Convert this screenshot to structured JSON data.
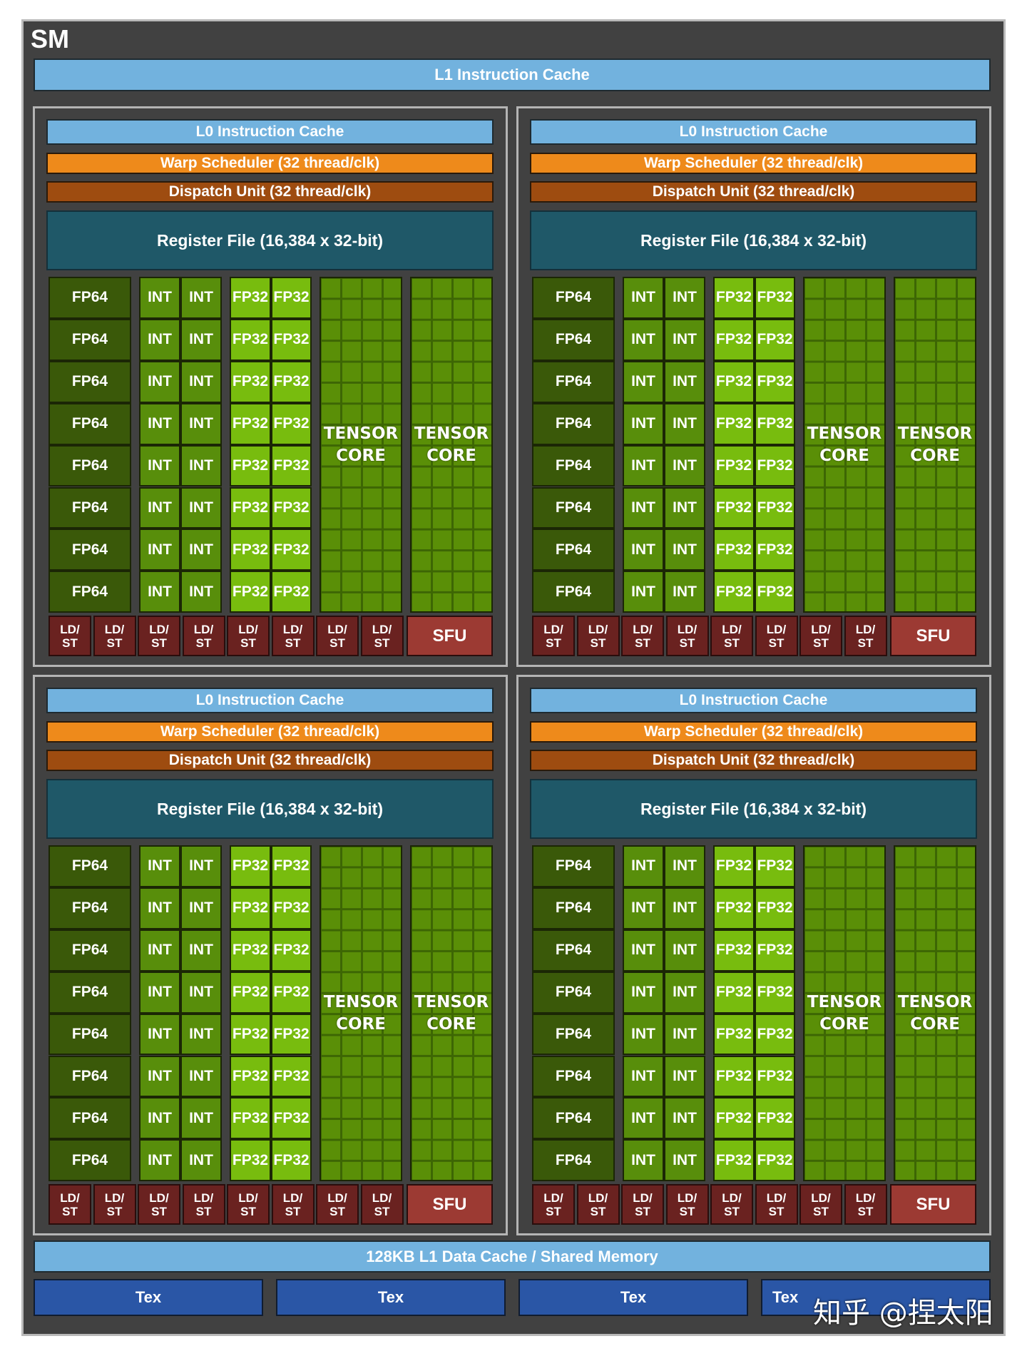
{
  "sm_title": "SM",
  "l1_instruction_cache": "L1 Instruction Cache",
  "quadrants": [
    {
      "l0": "L0 Instruction Cache",
      "warp": "Warp Scheduler (32 thread/clk)",
      "dispatch": "Dispatch Unit (32 thread/clk)",
      "register": "Register File (16,384 x 32-bit)",
      "fp64": "FP64",
      "int": "INT",
      "fp32": "FP32",
      "tensor_line1": "TENSOR",
      "tensor_line2": "CORE",
      "ld": "LD/",
      "st": "ST",
      "sfu": "SFU"
    },
    {
      "l0": "L0 Instruction Cache",
      "warp": "Warp Scheduler (32 thread/clk)",
      "dispatch": "Dispatch Unit (32 thread/clk)",
      "register": "Register File (16,384 x 32-bit)",
      "fp64": "FP64",
      "int": "INT",
      "fp32": "FP32",
      "tensor_line1": "TENSOR",
      "tensor_line2": "CORE",
      "ld": "LD/",
      "st": "ST",
      "sfu": "SFU"
    },
    {
      "l0": "L0 Instruction Cache",
      "warp": "Warp Scheduler (32 thread/clk)",
      "dispatch": "Dispatch Unit (32 thread/clk)",
      "register": "Register File (16,384 x 32-bit)",
      "fp64": "FP64",
      "int": "INT",
      "fp32": "FP32",
      "tensor_line1": "TENSOR",
      "tensor_line2": "CORE",
      "ld": "LD/",
      "st": "ST",
      "sfu": "SFU"
    },
    {
      "l0": "L0 Instruction Cache",
      "warp": "Warp Scheduler (32 thread/clk)",
      "dispatch": "Dispatch Unit (32 thread/clk)",
      "register": "Register File (16,384 x 32-bit)",
      "fp64": "FP64",
      "int": "INT",
      "fp32": "FP32",
      "tensor_line1": "TENSOR",
      "tensor_line2": "CORE",
      "ld": "LD/",
      "st": "ST",
      "sfu": "SFU"
    }
  ],
  "l1_data_cache": "128KB L1 Data Cache / Shared Memory",
  "tex_units": [
    "Tex",
    "Tex",
    "Tex",
    "Tex"
  ],
  "watermark": "知乎 @捏太阳",
  "colors": {
    "l1_cache": "#72b2de",
    "warp_scheduler": "#ee8a1b",
    "dispatch_unit": "#9e4c10",
    "register_file": "#1f5868",
    "fp64": "#3a5909",
    "int": "#588e0b",
    "fp32": "#78bc0e",
    "tensor_core": "#5a8f07",
    "ld_st": "#6a2220",
    "sfu": "#9c3a33",
    "tex": "#2a56a6"
  }
}
